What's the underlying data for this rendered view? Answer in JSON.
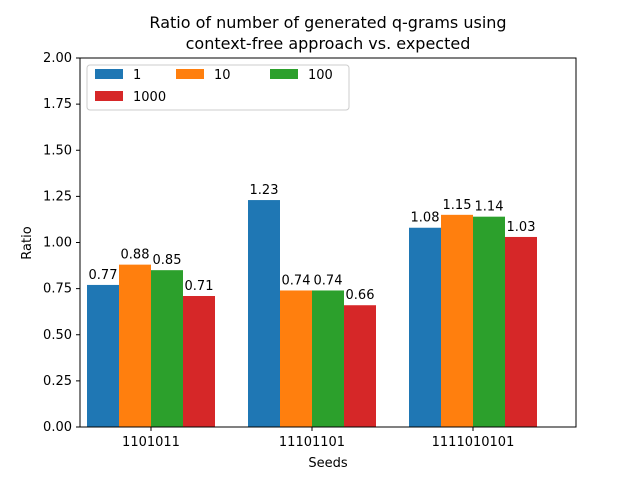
{
  "chart_data": {
    "type": "bar",
    "title": [
      "Ratio of number of generated q-grams using",
      "context-free approach vs. expected"
    ],
    "xlabel": "Seeds",
    "ylabel": "Ratio",
    "categories": [
      "1101011",
      "11101101",
      "1111010101"
    ],
    "ylim": [
      0,
      2.0
    ],
    "yticks": [
      "0.00",
      "0.25",
      "0.50",
      "0.75",
      "1.00",
      "1.25",
      "1.50",
      "1.75",
      "2.00"
    ],
    "legend_position": "top-left",
    "legend_columns": 3,
    "grid": false,
    "series": [
      {
        "name": "1",
        "color": "#1f77b4",
        "values": [
          0.77,
          1.23,
          1.08
        ],
        "labels": [
          "0.77",
          "1.23",
          "1.08"
        ]
      },
      {
        "name": "10",
        "color": "#ff7f0e",
        "values": [
          0.88,
          0.74,
          1.15
        ],
        "labels": [
          "0.88",
          "0.74",
          "1.15"
        ]
      },
      {
        "name": "100",
        "color": "#2ca02c",
        "values": [
          0.85,
          0.74,
          1.14
        ],
        "labels": [
          "0.85",
          "0.74",
          "1.14"
        ]
      },
      {
        "name": "1000",
        "color": "#d62728",
        "values": [
          0.71,
          0.66,
          1.03
        ],
        "labels": [
          "0.71",
          "0.66",
          "1.03"
        ]
      }
    ]
  }
}
